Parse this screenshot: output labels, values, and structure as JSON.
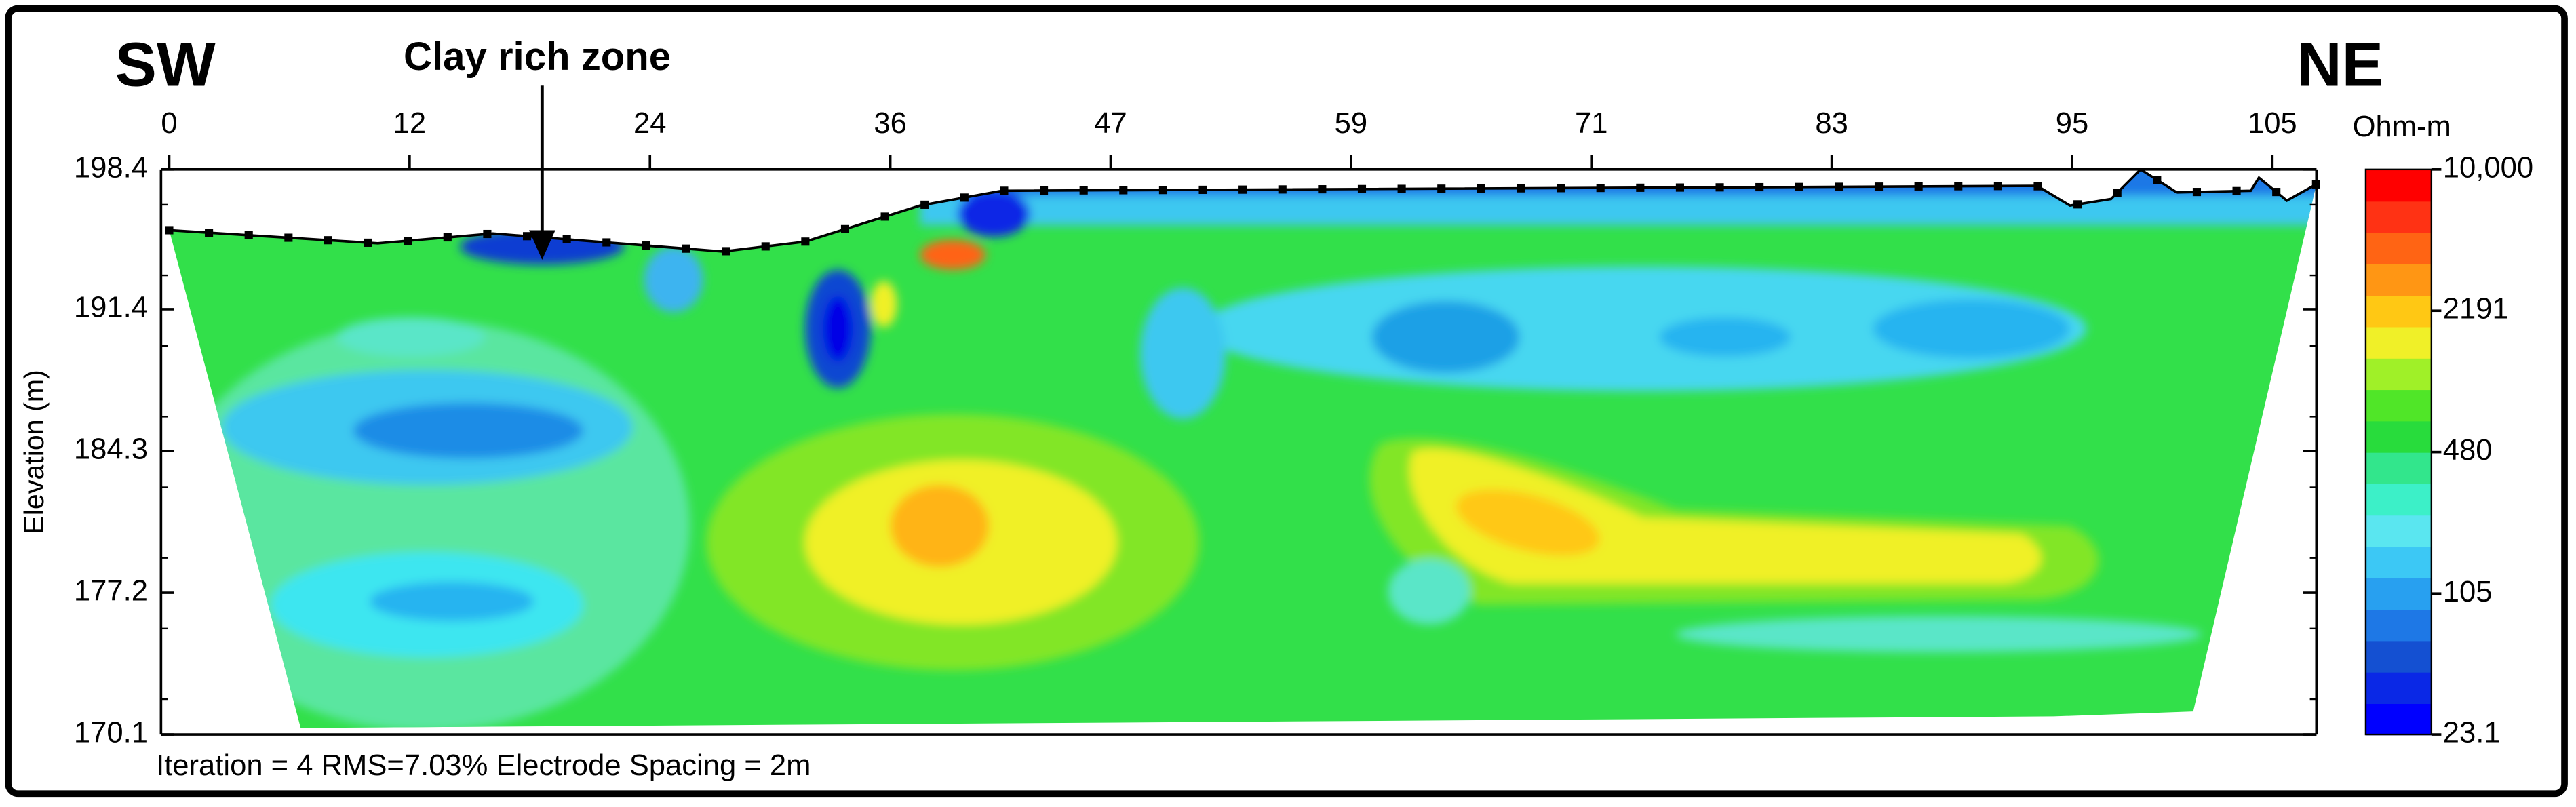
{
  "chart_data": {
    "type": "heatmap",
    "annotations": {
      "left": "SW",
      "right": "NE",
      "marker": "Clay rich zone",
      "footer": "Iteration = 4 RMS=7.03% Electrode Spacing = 2m"
    },
    "y_label": "Elevation (m)",
    "xlim": [
      0,
      107.2
    ],
    "xticks": [
      0,
      12,
      24,
      36,
      47,
      59,
      71,
      83,
      95,
      105
    ],
    "ylim": [
      170.1,
      198.4
    ],
    "yticks": [
      198.4,
      191.4,
      184.3,
      177.2,
      170.1
    ],
    "colorbar": {
      "label": "Ohm-m",
      "scale": "log",
      "lim": [
        23.1,
        10000
      ],
      "ticks": [
        {
          "value": 10000,
          "label": "10,000"
        },
        2191,
        480,
        105,
        23.1
      ],
      "colors": [
        "#0000ff",
        "#0a28e6",
        "#1450d2",
        "#1e78e6",
        "#28a0f0",
        "#3cc8f5",
        "#5ae6f0",
        "#3cf0c8",
        "#32e68c",
        "#28dc3c",
        "#50e628",
        "#a0f028",
        "#f0f028",
        "#ffc814",
        "#ff9614",
        "#ff6414",
        "#ff3214",
        "#ff0000"
      ]
    }
  }
}
